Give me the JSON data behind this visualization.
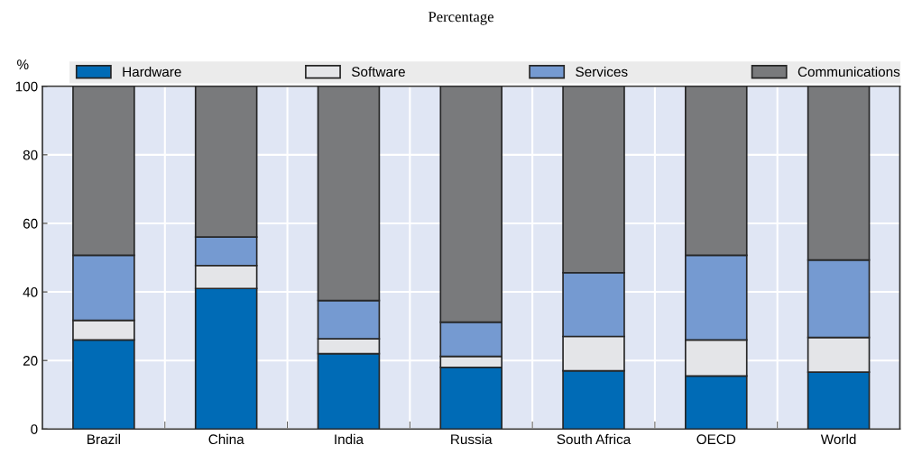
{
  "chart_data": {
    "type": "bar",
    "subtitle": "Percentage",
    "ylabel": "%",
    "categories": [
      "Brazil",
      "China",
      "India",
      "Russia",
      "South Africa",
      "OECD",
      "World"
    ],
    "series": [
      {
        "name": "Hardware",
        "color": "#006bb6",
        "values": [
          26,
          41,
          22,
          18,
          17,
          15.5,
          16.6
        ]
      },
      {
        "name": "Software",
        "color": "#e4e5e8",
        "values": [
          5.7,
          6.7,
          4.3,
          3.2,
          10,
          10.5,
          10.1
        ]
      },
      {
        "name": "Services",
        "color": "#759ad1",
        "values": [
          19,
          8.3,
          11.2,
          10,
          18.6,
          24.7,
          22.6
        ]
      },
      {
        "name": "Communications",
        "color": "#797a7c",
        "values": [
          49.3,
          44,
          62.5,
          68.8,
          54.4,
          49.3,
          50.7
        ]
      }
    ],
    "stacked": true,
    "ylim": [
      0,
      100
    ],
    "yticks": [
      0,
      20,
      40,
      60,
      80,
      100
    ],
    "grid": true,
    "legend": "top"
  }
}
